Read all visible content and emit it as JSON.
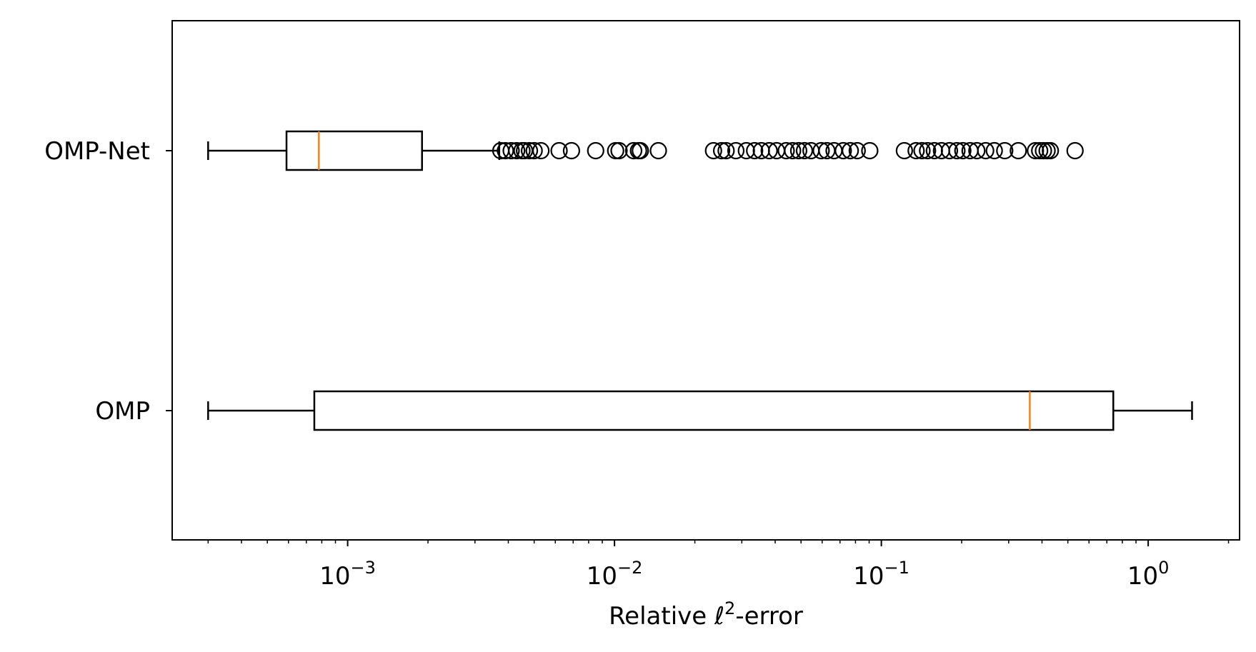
{
  "chart_data": {
    "type": "boxplot",
    "orientation": "horizontal",
    "xscale": "log",
    "xlim": [
      0.00022,
      2.2
    ],
    "xlabel": {
      "prefix": "Relative ",
      "symbol": "ℓ",
      "sup": "2",
      "suffix": "-error"
    },
    "xticks": [
      {
        "value": 0.001,
        "base": "10",
        "exp": "−3"
      },
      {
        "value": 0.01,
        "base": "10",
        "exp": "−2"
      },
      {
        "value": 0.1,
        "base": "10",
        "exp": "−1"
      },
      {
        "value": 1,
        "base": "10",
        "exp": "0"
      }
    ],
    "grid": false,
    "series": [
      {
        "name": "OMP-Net",
        "whisker_low": 0.0003,
        "q1": 0.00059,
        "median": 0.00078,
        "q3": 0.0019,
        "whisker_high": 0.0037,
        "outliers": [
          0.00375,
          0.0039,
          0.0041,
          0.0043,
          0.0045,
          0.0046,
          0.0048,
          0.005,
          0.0053,
          0.0062,
          0.0069,
          0.0085,
          0.0101,
          0.0104,
          0.0118,
          0.0123,
          0.0125,
          0.0146,
          0.0235,
          0.0252,
          0.0262,
          0.0285,
          0.0312,
          0.0335,
          0.0355,
          0.038,
          0.0405,
          0.044,
          0.0465,
          0.049,
          0.0515,
          0.0545,
          0.0595,
          0.0625,
          0.0665,
          0.072,
          0.0765,
          0.0812,
          0.0905,
          0.122,
          0.135,
          0.142,
          0.149,
          0.158,
          0.168,
          0.18,
          0.192,
          0.202,
          0.215,
          0.228,
          0.246,
          0.265,
          0.29,
          0.326,
          0.378,
          0.392,
          0.405,
          0.418,
          0.43,
          0.532
        ]
      },
      {
        "name": "OMP",
        "whisker_low": 0.0003,
        "q1": 0.00075,
        "median": 0.36,
        "q3": 0.74,
        "whisker_high": 1.46,
        "outliers": []
      }
    ]
  }
}
